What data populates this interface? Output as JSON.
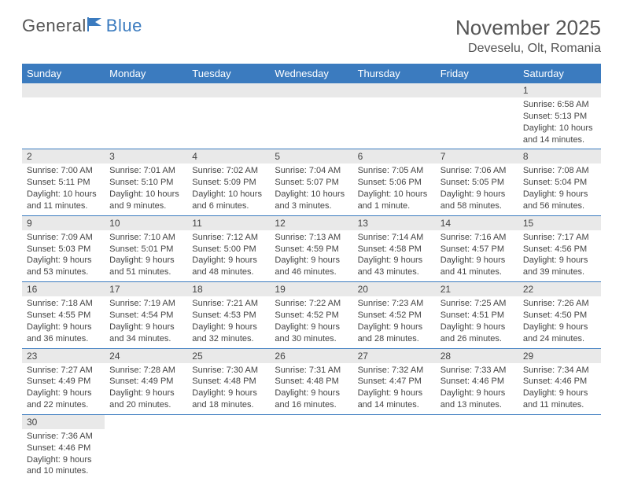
{
  "brand": {
    "part1": "General",
    "part2": "Blue"
  },
  "title": "November 2025",
  "location": "Deveselu, Olt, Romania",
  "colors": {
    "header_bg": "#3b7bbf",
    "header_text": "#ffffff",
    "daynum_bg": "#e9e9e9",
    "border": "#3b7bbf",
    "text": "#444444",
    "page_bg": "#ffffff"
  },
  "weekdays": [
    "Sunday",
    "Monday",
    "Tuesday",
    "Wednesday",
    "Thursday",
    "Friday",
    "Saturday"
  ],
  "weeks": [
    [
      {
        "n": "",
        "sr": "",
        "ss": "",
        "dl": ""
      },
      {
        "n": "",
        "sr": "",
        "ss": "",
        "dl": ""
      },
      {
        "n": "",
        "sr": "",
        "ss": "",
        "dl": ""
      },
      {
        "n": "",
        "sr": "",
        "ss": "",
        "dl": ""
      },
      {
        "n": "",
        "sr": "",
        "ss": "",
        "dl": ""
      },
      {
        "n": "",
        "sr": "",
        "ss": "",
        "dl": ""
      },
      {
        "n": "1",
        "sr": "Sunrise: 6:58 AM",
        "ss": "Sunset: 5:13 PM",
        "dl": "Daylight: 10 hours and 14 minutes."
      }
    ],
    [
      {
        "n": "2",
        "sr": "Sunrise: 7:00 AM",
        "ss": "Sunset: 5:11 PM",
        "dl": "Daylight: 10 hours and 11 minutes."
      },
      {
        "n": "3",
        "sr": "Sunrise: 7:01 AM",
        "ss": "Sunset: 5:10 PM",
        "dl": "Daylight: 10 hours and 9 minutes."
      },
      {
        "n": "4",
        "sr": "Sunrise: 7:02 AM",
        "ss": "Sunset: 5:09 PM",
        "dl": "Daylight: 10 hours and 6 minutes."
      },
      {
        "n": "5",
        "sr": "Sunrise: 7:04 AM",
        "ss": "Sunset: 5:07 PM",
        "dl": "Daylight: 10 hours and 3 minutes."
      },
      {
        "n": "6",
        "sr": "Sunrise: 7:05 AM",
        "ss": "Sunset: 5:06 PM",
        "dl": "Daylight: 10 hours and 1 minute."
      },
      {
        "n": "7",
        "sr": "Sunrise: 7:06 AM",
        "ss": "Sunset: 5:05 PM",
        "dl": "Daylight: 9 hours and 58 minutes."
      },
      {
        "n": "8",
        "sr": "Sunrise: 7:08 AM",
        "ss": "Sunset: 5:04 PM",
        "dl": "Daylight: 9 hours and 56 minutes."
      }
    ],
    [
      {
        "n": "9",
        "sr": "Sunrise: 7:09 AM",
        "ss": "Sunset: 5:03 PM",
        "dl": "Daylight: 9 hours and 53 minutes."
      },
      {
        "n": "10",
        "sr": "Sunrise: 7:10 AM",
        "ss": "Sunset: 5:01 PM",
        "dl": "Daylight: 9 hours and 51 minutes."
      },
      {
        "n": "11",
        "sr": "Sunrise: 7:12 AM",
        "ss": "Sunset: 5:00 PM",
        "dl": "Daylight: 9 hours and 48 minutes."
      },
      {
        "n": "12",
        "sr": "Sunrise: 7:13 AM",
        "ss": "Sunset: 4:59 PM",
        "dl": "Daylight: 9 hours and 46 minutes."
      },
      {
        "n": "13",
        "sr": "Sunrise: 7:14 AM",
        "ss": "Sunset: 4:58 PM",
        "dl": "Daylight: 9 hours and 43 minutes."
      },
      {
        "n": "14",
        "sr": "Sunrise: 7:16 AM",
        "ss": "Sunset: 4:57 PM",
        "dl": "Daylight: 9 hours and 41 minutes."
      },
      {
        "n": "15",
        "sr": "Sunrise: 7:17 AM",
        "ss": "Sunset: 4:56 PM",
        "dl": "Daylight: 9 hours and 39 minutes."
      }
    ],
    [
      {
        "n": "16",
        "sr": "Sunrise: 7:18 AM",
        "ss": "Sunset: 4:55 PM",
        "dl": "Daylight: 9 hours and 36 minutes."
      },
      {
        "n": "17",
        "sr": "Sunrise: 7:19 AM",
        "ss": "Sunset: 4:54 PM",
        "dl": "Daylight: 9 hours and 34 minutes."
      },
      {
        "n": "18",
        "sr": "Sunrise: 7:21 AM",
        "ss": "Sunset: 4:53 PM",
        "dl": "Daylight: 9 hours and 32 minutes."
      },
      {
        "n": "19",
        "sr": "Sunrise: 7:22 AM",
        "ss": "Sunset: 4:52 PM",
        "dl": "Daylight: 9 hours and 30 minutes."
      },
      {
        "n": "20",
        "sr": "Sunrise: 7:23 AM",
        "ss": "Sunset: 4:52 PM",
        "dl": "Daylight: 9 hours and 28 minutes."
      },
      {
        "n": "21",
        "sr": "Sunrise: 7:25 AM",
        "ss": "Sunset: 4:51 PM",
        "dl": "Daylight: 9 hours and 26 minutes."
      },
      {
        "n": "22",
        "sr": "Sunrise: 7:26 AM",
        "ss": "Sunset: 4:50 PM",
        "dl": "Daylight: 9 hours and 24 minutes."
      }
    ],
    [
      {
        "n": "23",
        "sr": "Sunrise: 7:27 AM",
        "ss": "Sunset: 4:49 PM",
        "dl": "Daylight: 9 hours and 22 minutes."
      },
      {
        "n": "24",
        "sr": "Sunrise: 7:28 AM",
        "ss": "Sunset: 4:49 PM",
        "dl": "Daylight: 9 hours and 20 minutes."
      },
      {
        "n": "25",
        "sr": "Sunrise: 7:30 AM",
        "ss": "Sunset: 4:48 PM",
        "dl": "Daylight: 9 hours and 18 minutes."
      },
      {
        "n": "26",
        "sr": "Sunrise: 7:31 AM",
        "ss": "Sunset: 4:48 PM",
        "dl": "Daylight: 9 hours and 16 minutes."
      },
      {
        "n": "27",
        "sr": "Sunrise: 7:32 AM",
        "ss": "Sunset: 4:47 PM",
        "dl": "Daylight: 9 hours and 14 minutes."
      },
      {
        "n": "28",
        "sr": "Sunrise: 7:33 AM",
        "ss": "Sunset: 4:46 PM",
        "dl": "Daylight: 9 hours and 13 minutes."
      },
      {
        "n": "29",
        "sr": "Sunrise: 7:34 AM",
        "ss": "Sunset: 4:46 PM",
        "dl": "Daylight: 9 hours and 11 minutes."
      }
    ],
    [
      {
        "n": "30",
        "sr": "Sunrise: 7:36 AM",
        "ss": "Sunset: 4:46 PM",
        "dl": "Daylight: 9 hours and 10 minutes."
      },
      {
        "n": "",
        "sr": "",
        "ss": "",
        "dl": ""
      },
      {
        "n": "",
        "sr": "",
        "ss": "",
        "dl": ""
      },
      {
        "n": "",
        "sr": "",
        "ss": "",
        "dl": ""
      },
      {
        "n": "",
        "sr": "",
        "ss": "",
        "dl": ""
      },
      {
        "n": "",
        "sr": "",
        "ss": "",
        "dl": ""
      },
      {
        "n": "",
        "sr": "",
        "ss": "",
        "dl": ""
      }
    ]
  ]
}
